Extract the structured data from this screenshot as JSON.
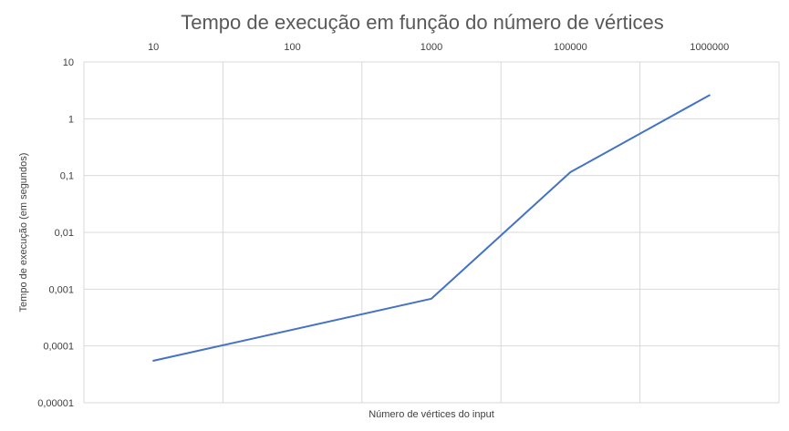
{
  "chart_data": {
    "type": "line",
    "title": "Tempo de execução em função do número de vértices",
    "xlabel": "Número de vértices do input",
    "ylabel": "Tempo de execução (em segundos)",
    "x_scale": "log",
    "y_scale": "log",
    "x_axis_position": "top",
    "categories": [
      "10",
      "100",
      "1000",
      "100000",
      "1000000"
    ],
    "x_tick_labels": [
      "10",
      "100",
      "1000",
      "100000",
      "1000000"
    ],
    "y_tick_labels": [
      "0,00001",
      "0,0001",
      "0,001",
      "0,01",
      "0,1",
      "1",
      "10"
    ],
    "ylim": [
      1e-05,
      10
    ],
    "grid": true,
    "legend": "none",
    "series": [
      {
        "x": [
          "10",
          "1000",
          "100000",
          "1000000"
        ],
        "values": [
          5.5e-05,
          0.00068,
          0.115,
          2.6
        ],
        "color": "#4472c4"
      }
    ]
  }
}
